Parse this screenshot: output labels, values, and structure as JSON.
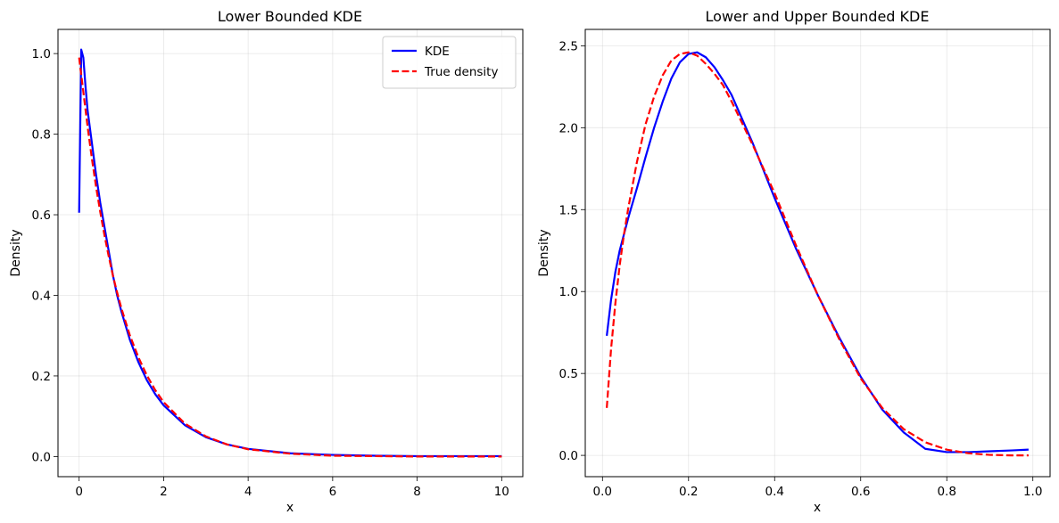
{
  "chart_data": [
    {
      "type": "line",
      "title": "Lower Bounded KDE",
      "xlabel": "x",
      "ylabel": "Density",
      "xlim": [
        -0.5,
        10.5
      ],
      "ylim": [
        -0.05,
        1.06
      ],
      "xticks": [
        0,
        2,
        4,
        6,
        8,
        10
      ],
      "xtick_labels": [
        "0",
        "2",
        "4",
        "6",
        "8",
        "10"
      ],
      "yticks": [
        0.0,
        0.2,
        0.4,
        0.6,
        0.8,
        1.0
      ],
      "ytick_labels": [
        "0.0",
        "0.2",
        "0.4",
        "0.6",
        "0.8",
        "1.0"
      ],
      "grid": true,
      "legend": "top-right",
      "series": [
        {
          "name": "KDE",
          "color": "#0000ff",
          "style": "solid",
          "x": [
            0.0,
            0.05,
            0.1,
            0.15,
            0.2,
            0.3,
            0.4,
            0.5,
            0.6,
            0.7,
            0.8,
            0.9,
            1.0,
            1.2,
            1.4,
            1.6,
            1.8,
            2.0,
            2.5,
            3.0,
            3.5,
            4.0,
            5.0,
            6.0,
            7.0,
            8.0,
            9.0,
            10.0
          ],
          "y": [
            0.605,
            1.01,
            0.99,
            0.92,
            0.86,
            0.78,
            0.7,
            0.63,
            0.57,
            0.51,
            0.45,
            0.4,
            0.36,
            0.29,
            0.235,
            0.19,
            0.155,
            0.127,
            0.078,
            0.048,
            0.03,
            0.019,
            0.008,
            0.004,
            0.002,
            0.001,
            0.001,
            0.001
          ]
        },
        {
          "name": "True density",
          "color": "#ff0000",
          "style": "dashed",
          "x": [
            0.0,
            0.1,
            0.2,
            0.3,
            0.4,
            0.5,
            0.6,
            0.7,
            0.8,
            0.9,
            1.0,
            1.2,
            1.4,
            1.6,
            1.8,
            2.0,
            2.5,
            3.0,
            3.5,
            4.0,
            5.0,
            6.0,
            7.0,
            8.0,
            9.0,
            10.0
          ],
          "y": [
            0.99,
            0.905,
            0.819,
            0.741,
            0.67,
            0.607,
            0.549,
            0.497,
            0.449,
            0.407,
            0.368,
            0.301,
            0.247,
            0.202,
            0.165,
            0.135,
            0.082,
            0.05,
            0.03,
            0.018,
            0.007,
            0.002,
            0.001,
            0.0,
            0.0,
            0.0
          ]
        }
      ]
    },
    {
      "type": "line",
      "title": "Lower and Upper Bounded KDE",
      "xlabel": "x",
      "ylabel": "Density",
      "xlim": [
        -0.04,
        1.04
      ],
      "ylim": [
        -0.13,
        2.6
      ],
      "xticks": [
        0.0,
        0.2,
        0.4,
        0.6,
        0.8,
        1.0
      ],
      "xtick_labels": [
        "0.0",
        "0.2",
        "0.4",
        "0.6",
        "0.8",
        "1.0"
      ],
      "yticks": [
        0.0,
        0.5,
        1.0,
        1.5,
        2.0,
        2.5
      ],
      "ytick_labels": [
        "0.0",
        "0.5",
        "1.0",
        "1.5",
        "2.0",
        "2.5"
      ],
      "grid": true,
      "series": [
        {
          "color": "#0000ff",
          "style": "solid",
          "x": [
            0.01,
            0.02,
            0.03,
            0.04,
            0.05,
            0.06,
            0.08,
            0.1,
            0.12,
            0.14,
            0.16,
            0.18,
            0.2,
            0.22,
            0.24,
            0.26,
            0.28,
            0.3,
            0.35,
            0.4,
            0.45,
            0.5,
            0.55,
            0.6,
            0.65,
            0.7,
            0.75,
            0.8,
            0.85,
            0.9,
            0.95,
            0.99
          ],
          "y": [
            0.73,
            0.95,
            1.12,
            1.25,
            1.35,
            1.45,
            1.63,
            1.82,
            2.0,
            2.16,
            2.3,
            2.4,
            2.45,
            2.46,
            2.43,
            2.37,
            2.29,
            2.2,
            1.9,
            1.57,
            1.26,
            0.98,
            0.72,
            0.48,
            0.28,
            0.14,
            0.04,
            0.02,
            0.02,
            0.025,
            0.03,
            0.035
          ]
        },
        {
          "color": "#ff0000",
          "style": "dashed",
          "x": [
            0.01,
            0.02,
            0.03,
            0.04,
            0.05,
            0.06,
            0.08,
            0.1,
            0.12,
            0.14,
            0.16,
            0.18,
            0.2,
            0.22,
            0.24,
            0.26,
            0.28,
            0.3,
            0.35,
            0.4,
            0.45,
            0.5,
            0.55,
            0.6,
            0.65,
            0.7,
            0.75,
            0.8,
            0.85,
            0.9,
            0.95,
            0.99
          ],
          "y": [
            0.29,
            0.65,
            0.93,
            1.16,
            1.35,
            1.51,
            1.79,
            2.02,
            2.19,
            2.32,
            2.41,
            2.45,
            2.46,
            2.44,
            2.39,
            2.33,
            2.26,
            2.16,
            1.89,
            1.6,
            1.28,
            0.98,
            0.71,
            0.47,
            0.29,
            0.16,
            0.08,
            0.035,
            0.013,
            0.003,
            0.0,
            0.0
          ]
        }
      ]
    }
  ]
}
